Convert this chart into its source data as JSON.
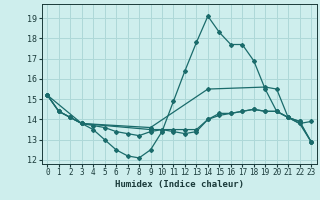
{
  "title": "",
  "xlabel": "Humidex (Indice chaleur)",
  "ylabel": "",
  "bg_color": "#ceeeed",
  "grid_color": "#aed8d8",
  "line_color": "#1a6b6b",
  "xlim": [
    -0.5,
    23.5
  ],
  "ylim": [
    11.8,
    19.7
  ],
  "yticks": [
    12,
    13,
    14,
    15,
    16,
    17,
    18,
    19
  ],
  "xticks": [
    0,
    1,
    2,
    3,
    4,
    5,
    6,
    7,
    8,
    9,
    10,
    11,
    12,
    13,
    14,
    15,
    16,
    17,
    18,
    19,
    20,
    21,
    22,
    23
  ],
  "lines": [
    {
      "x": [
        0,
        1,
        2,
        3,
        4,
        5,
        6,
        7,
        8,
        9,
        10,
        11,
        12,
        13,
        14,
        15,
        16,
        17,
        18,
        19,
        20,
        21,
        22,
        23
      ],
      "y": [
        15.2,
        14.4,
        14.1,
        13.8,
        13.5,
        13.0,
        12.5,
        12.2,
        12.1,
        12.5,
        13.4,
        14.9,
        16.4,
        17.8,
        19.1,
        18.3,
        17.7,
        17.7,
        16.9,
        15.5,
        14.4,
        14.1,
        13.8,
        12.9
      ]
    },
    {
      "x": [
        0,
        1,
        2,
        3,
        4,
        5,
        6,
        7,
        8,
        9,
        10,
        11,
        12,
        13,
        14,
        15,
        16,
        17,
        18,
        19,
        20,
        21,
        22,
        23
      ],
      "y": [
        15.2,
        14.4,
        14.1,
        13.8,
        13.7,
        13.6,
        13.4,
        13.3,
        13.2,
        13.4,
        13.5,
        13.5,
        13.5,
        13.5,
        14.0,
        14.2,
        14.3,
        14.4,
        14.5,
        14.4,
        14.4,
        14.1,
        13.9,
        12.9
      ]
    },
    {
      "x": [
        0,
        1,
        2,
        3,
        9,
        10,
        11,
        12,
        13,
        14,
        15,
        16,
        17,
        18,
        19,
        20,
        21,
        22,
        23
      ],
      "y": [
        15.2,
        14.4,
        14.1,
        13.8,
        13.5,
        13.5,
        13.4,
        13.3,
        13.4,
        14.0,
        14.3,
        14.3,
        14.4,
        14.5,
        14.4,
        14.4,
        14.1,
        13.9,
        12.9
      ]
    },
    {
      "x": [
        0,
        3,
        9,
        14,
        19,
        20,
        21,
        22,
        23
      ],
      "y": [
        15.2,
        13.8,
        13.6,
        15.5,
        15.6,
        15.5,
        14.1,
        13.8,
        13.9
      ]
    }
  ]
}
